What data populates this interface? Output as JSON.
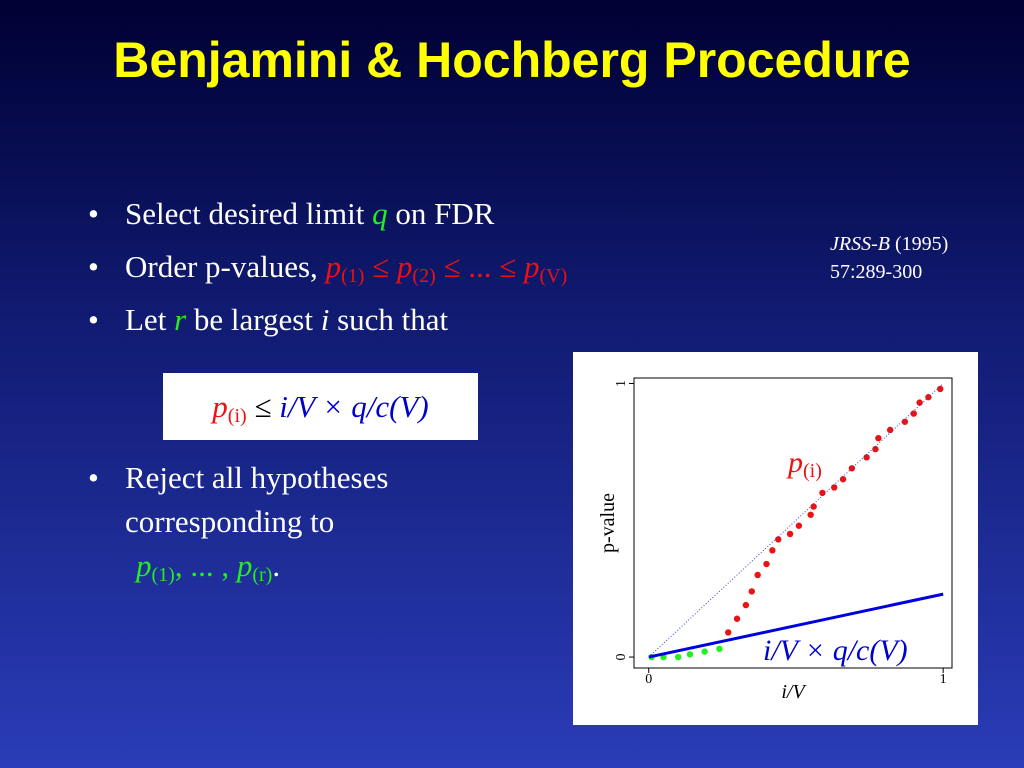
{
  "title": "Benjamini & Hochberg Procedure",
  "bullets": [
    [
      "Select desired limit ",
      "q",
      " on FDR"
    ],
    [
      "Order p-values, ",
      "p",
      "(1)",
      " ≤ ",
      "p",
      "(2)",
      " ≤  ... ≤ ",
      "p",
      "(V)"
    ],
    [
      "Let ",
      "r",
      " be largest ",
      "i",
      " such that"
    ],
    [
      "Reject all hypotheses corresponding to",
      "p",
      "(1)",
      ", ... , ",
      "p",
      "(r)",
      "."
    ]
  ],
  "formula": [
    "p",
    "(i)",
    " ≤ ",
    "i/V × q/c(V)"
  ],
  "reference": [
    "JRSS-B",
    " (1995)",
    "57:289-300"
  ],
  "chart_data": {
    "type": "scatter",
    "xlabel": "i/V",
    "ylabel": "p-value",
    "xlim": [
      -0.05,
      1.03
    ],
    "ylim": [
      -0.04,
      1.02
    ],
    "xticks": [
      0,
      1
    ],
    "yticks": [
      0,
      1
    ],
    "series": [
      {
        "color": "#22ee22",
        "style": "points",
        "x": [
          0.01,
          0.05,
          0.1,
          0.14,
          0.19,
          0.24
        ],
        "values": [
          0.0,
          0.0,
          0.0,
          0.01,
          0.02,
          0.03
        ]
      },
      {
        "color": "#ee1111",
        "style": "points",
        "x": [
          0.27,
          0.3,
          0.33,
          0.35,
          0.37,
          0.4,
          0.42,
          0.44,
          0.48,
          0.51,
          0.55,
          0.56,
          0.59,
          0.63,
          0.66,
          0.69,
          0.74,
          0.77,
          0.78,
          0.82,
          0.87,
          0.9,
          0.92,
          0.95,
          0.99
        ],
        "values": [
          0.09,
          0.14,
          0.19,
          0.24,
          0.3,
          0.34,
          0.39,
          0.43,
          0.45,
          0.48,
          0.52,
          0.55,
          0.6,
          0.62,
          0.65,
          0.69,
          0.73,
          0.76,
          0.8,
          0.83,
          0.86,
          0.89,
          0.93,
          0.95,
          0.98
        ]
      },
      {
        "color": "#0000dd",
        "style": "line",
        "x": [
          0,
          1
        ],
        "values": [
          0,
          0.23
        ]
      },
      {
        "color": "#3344cc",
        "style": "dotted",
        "x": [
          0,
          1
        ],
        "values": [
          0,
          1
        ]
      }
    ],
    "annotations": [
      [
        "p",
        "(i)"
      ],
      [
        "i/V × q/c(V)"
      ]
    ]
  }
}
